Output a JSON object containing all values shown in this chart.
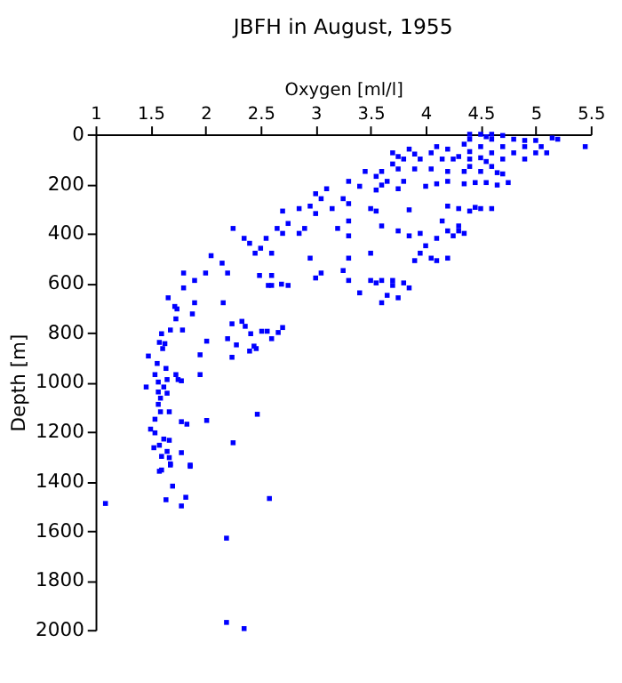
{
  "chart_data": {
    "type": "scatter",
    "title": "JBFH in August, 1955",
    "xlabel": "Oxygen [ml/l]",
    "ylabel": "Depth [m]",
    "xlim": [
      1,
      5.5
    ],
    "xticks": [
      1,
      1.5,
      2,
      2.5,
      3,
      3.5,
      4,
      4.5,
      5,
      5.5
    ],
    "ylim": [
      2000,
      0
    ],
    "yticks": [
      0,
      200,
      400,
      600,
      800,
      1000,
      1200,
      1400,
      1600,
      1800,
      2000
    ],
    "grid": false,
    "marker": "square",
    "series": [
      {
        "color": "#0000ff",
        "x": [
          4.4,
          4.5,
          4.6,
          4.7,
          4.55,
          4.4,
          4.6,
          4.8,
          4.9,
          5.0,
          5.15,
          5.2,
          5.45,
          4.35,
          4.5,
          4.7,
          4.9,
          5.05,
          4.2,
          4.1,
          4.4,
          4.6,
          4.8,
          5.0,
          5.1,
          4.3,
          4.5,
          4.7,
          4.9,
          3.85,
          3.7,
          3.9,
          4.05,
          3.8,
          3.75,
          3.95,
          4.15,
          4.25,
          4.4,
          4.55,
          4.4,
          4.6,
          3.7,
          3.75,
          3.6,
          3.45,
          3.55,
          3.9,
          4.05,
          4.2,
          4.35,
          4.5,
          4.65,
          4.7,
          3.3,
          3.4,
          3.6,
          3.65,
          3.8,
          3.55,
          3.75,
          4.0,
          4.2,
          4.35,
          4.45,
          4.55,
          4.65,
          4.75,
          4.1,
          3.1,
          3.0,
          3.05,
          3.25,
          3.3,
          2.95,
          2.85,
          3.0,
          3.15,
          3.5,
          3.55,
          3.85,
          4.2,
          4.3,
          4.4,
          4.45,
          4.5,
          4.6,
          2.7,
          2.75,
          2.9,
          2.65,
          2.7,
          2.55,
          2.35,
          2.4,
          2.25,
          2.05,
          2.15,
          2.5,
          2.45,
          2.6,
          2.95,
          2.85,
          3.2,
          3.3,
          3.3,
          3.6,
          3.75,
          3.85,
          3.95,
          4.1,
          4.0,
          4.2,
          4.3,
          4.35,
          4.25,
          4.3,
          4.15,
          3.95,
          4.05,
          4.1,
          4.2,
          3.9,
          3.5,
          3.3,
          3.05,
          3.3,
          3.5,
          3.55,
          3.6,
          3.7,
          3.8,
          3.85,
          3.75,
          3.65,
          3.4,
          3.6,
          3.7,
          2.0,
          2.2,
          1.8,
          1.9,
          1.8,
          2.6,
          2.6,
          2.75,
          3.0,
          3.25,
          1.66,
          1.72,
          1.74,
          1.68,
          1.73,
          1.79,
          1.9,
          1.88,
          2.16,
          2.01,
          1.95,
          1.95,
          1.48,
          1.6,
          1.58,
          1.63,
          1.61,
          1.56,
          1.64,
          1.54,
          1.57,
          1.65,
          1.73,
          1.75,
          1.78,
          1.46,
          1.62,
          1.57,
          1.65,
          1.59,
          1.57,
          1.67,
          1.59,
          1.54,
          1.78,
          1.83,
          2.01,
          2.47,
          1.5,
          1.54,
          1.62,
          1.67,
          2.25,
          1.53,
          1.58,
          1.65,
          1.6,
          1.67,
          1.78,
          1.68,
          1.86,
          1.6,
          2.24,
          2.33,
          2.36,
          2.41,
          2.51,
          2.56,
          2.6,
          2.66,
          2.7,
          2.2,
          2.28,
          2.44,
          2.4,
          2.46,
          2.24,
          2.49,
          2.57,
          2.69,
          1.58,
          1.68,
          1.86,
          1.09,
          1.64,
          1.7,
          1.78,
          1.82,
          2.58,
          2.19,
          2.19,
          2.35
        ],
        "values": [
          0,
          0,
          0,
          5,
          10,
          20,
          20,
          20,
          25,
          25,
          15,
          20,
          50,
          40,
          50,
          50,
          50,
          50,
          60,
          50,
          70,
          75,
          75,
          75,
          75,
          90,
          95,
          100,
          100,
          60,
          75,
          80,
          75,
          100,
          90,
          100,
          100,
          100,
          100,
          110,
          130,
          130,
          120,
          140,
          150,
          150,
          170,
          140,
          140,
          150,
          150,
          150,
          155,
          160,
          190,
          210,
          205,
          190,
          190,
          225,
          220,
          210,
          190,
          200,
          195,
          195,
          205,
          195,
          200,
          220,
          240,
          260,
          260,
          280,
          290,
          300,
          320,
          300,
          300,
          310,
          305,
          290,
          300,
          310,
          295,
          300,
          300,
          310,
          360,
          380,
          380,
          400,
          420,
          420,
          440,
          380,
          490,
          520,
          460,
          480,
          480,
          500,
          400,
          380,
          350,
          410,
          370,
          390,
          410,
          400,
          420,
          450,
          390,
          390,
          400,
          410,
          370,
          350,
          480,
          500,
          510,
          500,
          510,
          480,
          500,
          560,
          590,
          590,
          600,
          590,
          590,
          600,
          620,
          660,
          650,
          640,
          680,
          610,
          560,
          560,
          560,
          590,
          620,
          570,
          610,
          610,
          580,
          550,
          660,
          695,
          705,
          790,
          745,
          790,
          680,
          725,
          680,
          835,
          890,
          970,
          895,
          805,
          840,
          845,
          865,
          925,
          945,
          970,
          1000,
          990,
          970,
          990,
          995,
          1020,
          1020,
          1040,
          1045,
          1065,
          1090,
          1120,
          1120,
          1150,
          1160,
          1170,
          1155,
          1130,
          1190,
          1205,
          1230,
          1235,
          1245,
          1265,
          1255,
          1280,
          1300,
          1305,
          1285,
          1330,
          1335,
          1355,
          765,
          755,
          775,
          805,
          795,
          795,
          825,
          800,
          780,
          825,
          850,
          855,
          875,
          865,
          900,
          570,
          610,
          605,
          1360,
          1335,
          1340,
          1490,
          1475,
          1420,
          1500,
          1465,
          1470,
          1630,
          1970,
          1995
        ]
      }
    ]
  }
}
